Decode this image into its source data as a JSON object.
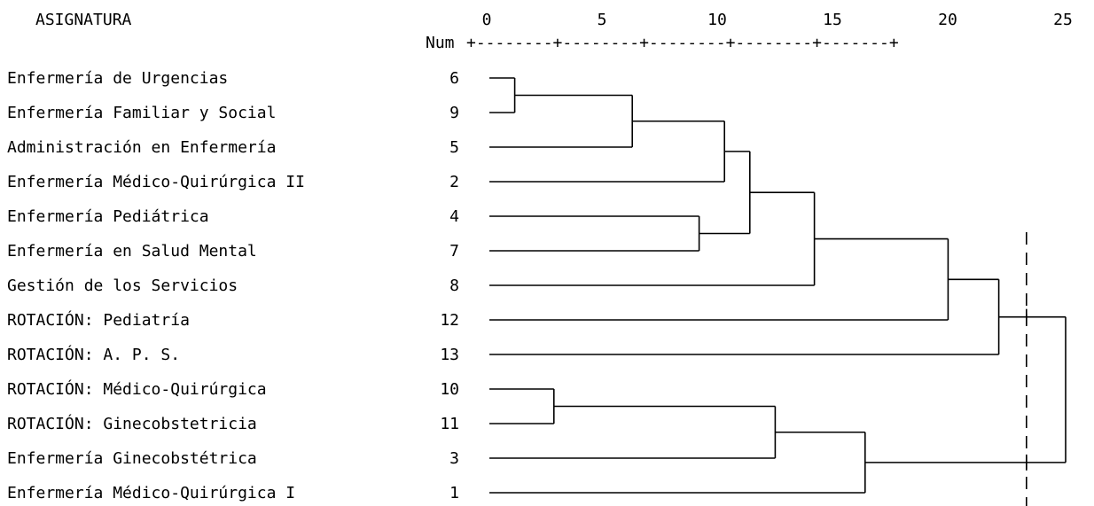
{
  "header": {
    "label_column": "ASIGNATURA",
    "num_column": "Num"
  },
  "chart_data": {
    "type": "dendrogram",
    "axis": {
      "ticks": [
        0,
        5,
        10,
        15,
        20,
        25
      ],
      "range": [
        0,
        25
      ],
      "ruler": "+--------+--------+--------+--------+-------+"
    },
    "leaves": [
      {
        "label": "Enfermería de Urgencias",
        "num": "6"
      },
      {
        "label": "Enfermería Familiar y Social",
        "num": "9"
      },
      {
        "label": "Administración en Enfermería",
        "num": "5"
      },
      {
        "label": "Enfermería Médico-Quirúrgica II",
        "num": "2"
      },
      {
        "label": "Enfermería Pediátrica",
        "num": "4"
      },
      {
        "label": "Enfermería en Salud Mental",
        "num": "7"
      },
      {
        "label": "Gestión de los Servicios",
        "num": "8"
      },
      {
        "label": "ROTACIÓN: Pediatría",
        "num": "12"
      },
      {
        "label": "ROTACIÓN: A. P. S.",
        "num": "13"
      },
      {
        "label": "ROTACIÓN: Médico-Quirúrgica",
        "num": "10"
      },
      {
        "label": "ROTACIÓN: Ginecobstetricia",
        "num": "11"
      },
      {
        "label": "Enfermería Ginecobstétrica",
        "num": "3"
      },
      {
        "label": "Enfermería Médico-Quirúrgica I",
        "num": "1"
      }
    ],
    "merges": [
      {
        "left": "L0",
        "right": "L1",
        "distance": 1.1
      },
      {
        "left": "M0",
        "right": "L2",
        "distance": 6.2
      },
      {
        "left": "M1",
        "right": "L3",
        "distance": 10.2
      },
      {
        "left": "L4",
        "right": "L5",
        "distance": 9.1
      },
      {
        "left": "M2",
        "right": "M3",
        "distance": 11.3
      },
      {
        "left": "M4",
        "right": "L6",
        "distance": 14.1
      },
      {
        "left": "M5",
        "right": "L7",
        "distance": 19.9
      },
      {
        "left": "M6",
        "right": "L8",
        "distance": 22.1
      },
      {
        "left": "L9",
        "right": "L10",
        "distance": 2.8
      },
      {
        "left": "M8",
        "right": "L11",
        "distance": 12.4
      },
      {
        "left": "M9",
        "right": "L12",
        "distance": 16.3
      },
      {
        "left": "M7",
        "right": "M10",
        "distance": 25.0
      }
    ],
    "cut_line": 23.3
  }
}
